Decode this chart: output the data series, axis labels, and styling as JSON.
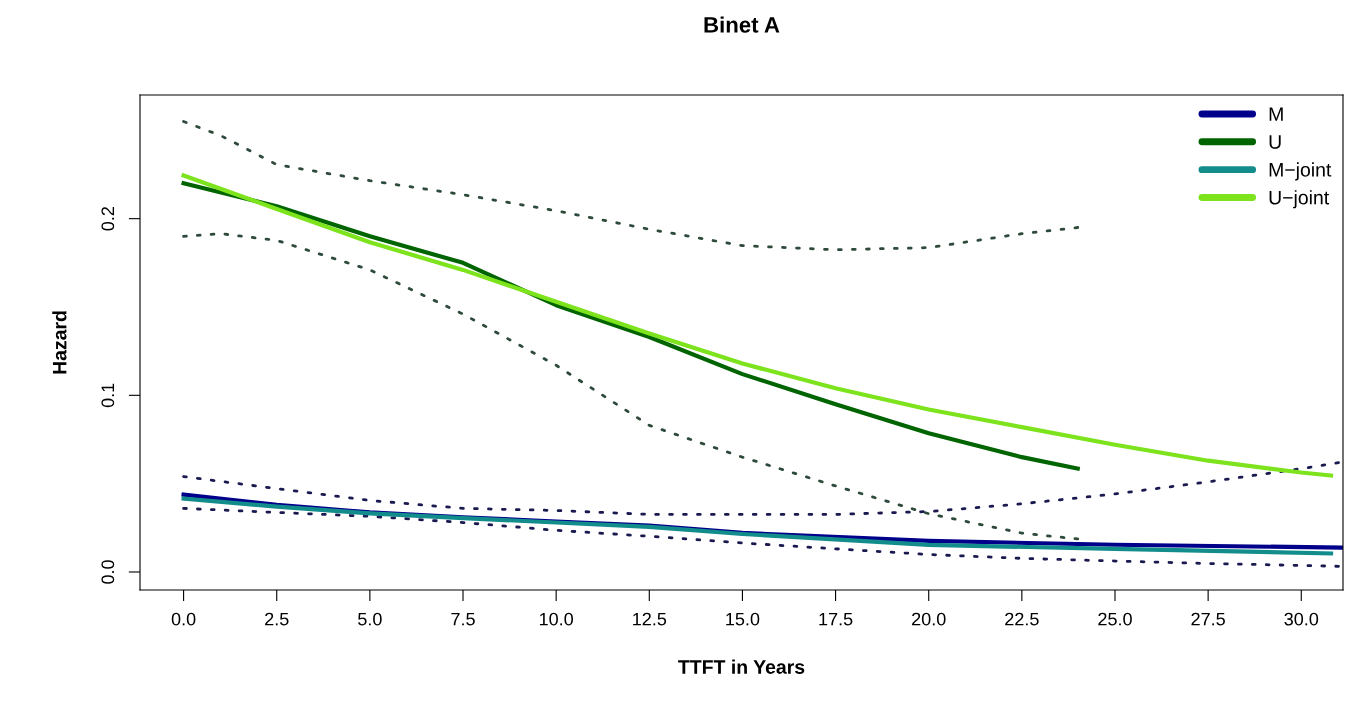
{
  "chart_data": {
    "type": "line",
    "title": "Binet A",
    "xlabel": "TTFT in Years",
    "ylabel": "Hazard",
    "xlim": [
      -1.17,
      31.12
    ],
    "ylim": [
      -0.0102,
      0.27
    ],
    "xticks": [
      {
        "value": 0,
        "label": "0.0"
      },
      {
        "value": 2.5,
        "label": "2.5"
      },
      {
        "value": 5,
        "label": "5.0"
      },
      {
        "value": 7.5,
        "label": "7.5"
      },
      {
        "value": 10,
        "label": "10.0"
      },
      {
        "value": 12.5,
        "label": "12.5"
      },
      {
        "value": 15,
        "label": "15.0"
      },
      {
        "value": 17.5,
        "label": "17.5"
      },
      {
        "value": 20,
        "label": "20.0"
      },
      {
        "value": 22.5,
        "label": "22.5"
      },
      {
        "value": 25,
        "label": "25.0"
      },
      {
        "value": 27.5,
        "label": "27.5"
      },
      {
        "value": 30,
        "label": "30.0"
      }
    ],
    "yticks": [
      {
        "value": 0,
        "label": "0.0"
      },
      0.1,
      0.2
    ],
    "grid": false,
    "legend": "top right",
    "series": [
      {
        "type": "line",
        "line_style": "dotted",
        "color": "#2e4a3a",
        "x": [
          0,
          1,
          2.5,
          5,
          7.5,
          10,
          12.5,
          15,
          17.5,
          20,
          22.5,
          24
        ],
        "values": [
          0.255,
          0.247,
          0.2306,
          0.2215,
          0.2136,
          0.2045,
          0.194,
          0.1847,
          0.1824,
          0.1836,
          0.1915,
          0.195
        ]
      },
      {
        "type": "line",
        "line_style": "dotted",
        "color": "#2e4a3a",
        "x": [
          0,
          1,
          2.5,
          5,
          7.5,
          10,
          12.5,
          15,
          17.5,
          20,
          22.5,
          24
        ],
        "values": [
          0.19,
          0.1915,
          0.1877,
          0.171,
          0.146,
          0.117,
          0.083,
          0.065,
          0.0487,
          0.033,
          0.022,
          0.0187
        ]
      },
      {
        "type": "line",
        "line_style": "dotted",
        "color": "#1a1a50",
        "x": [
          0,
          2.5,
          5,
          7.5,
          10,
          12.5,
          15,
          17.5,
          20,
          22.5,
          25,
          27.5,
          30,
          31
        ],
        "values": [
          0.054,
          0.0472,
          0.0405,
          0.036,
          0.0348,
          0.0326,
          0.0326,
          0.0326,
          0.0342,
          0.0386,
          0.0442,
          0.051,
          0.0585,
          0.0619
        ]
      },
      {
        "type": "line",
        "line_style": "dotted",
        "color": "#1a1a50",
        "x": [
          0,
          2.5,
          5,
          7.5,
          10,
          12.5,
          15,
          17.5,
          20,
          22.5,
          25,
          27.5,
          30,
          31
        ],
        "values": [
          0.036,
          0.0337,
          0.0315,
          0.028,
          0.0236,
          0.0202,
          0.0164,
          0.0131,
          0.0099,
          0.0077,
          0.0062,
          0.0048,
          0.0037,
          0.0032
        ]
      },
      {
        "name": "M",
        "color": "#00008b",
        "x": [
          0,
          2.5,
          5,
          7.5,
          10,
          12.5,
          15,
          20,
          25,
          31.1
        ],
        "values": [
          0.0438,
          0.038,
          0.0337,
          0.031,
          0.0285,
          0.0262,
          0.0221,
          0.0176,
          0.0154,
          0.0138
        ]
      },
      {
        "name": "U",
        "color": "#006400",
        "x": [
          0,
          2.5,
          5,
          7.5,
          10,
          12.5,
          15,
          17.5,
          20,
          22.5,
          24
        ],
        "values": [
          0.22,
          0.207,
          0.19,
          0.175,
          0.151,
          0.133,
          0.112,
          0.095,
          0.0785,
          0.065,
          0.0585
        ]
      },
      {
        "name": "M−joint",
        "color": "#138c8c",
        "x": [
          0,
          2.5,
          5,
          7.5,
          10,
          12.5,
          15,
          20,
          25,
          30.8
        ],
        "values": [
          0.0416,
          0.037,
          0.0332,
          0.0305,
          0.028,
          0.0255,
          0.0215,
          0.0153,
          0.0131,
          0.0105
        ]
      },
      {
        "name": "U−joint",
        "color": "#7ce31c",
        "x": [
          0,
          2.5,
          5,
          7.5,
          10,
          12.5,
          15,
          17.5,
          20,
          22.5,
          25,
          27.5,
          30,
          30.8
        ],
        "values": [
          0.2245,
          0.2055,
          0.1866,
          0.171,
          0.153,
          0.135,
          0.118,
          0.104,
          0.092,
          0.082,
          0.072,
          0.063,
          0.0563,
          0.0546
        ]
      }
    ]
  }
}
